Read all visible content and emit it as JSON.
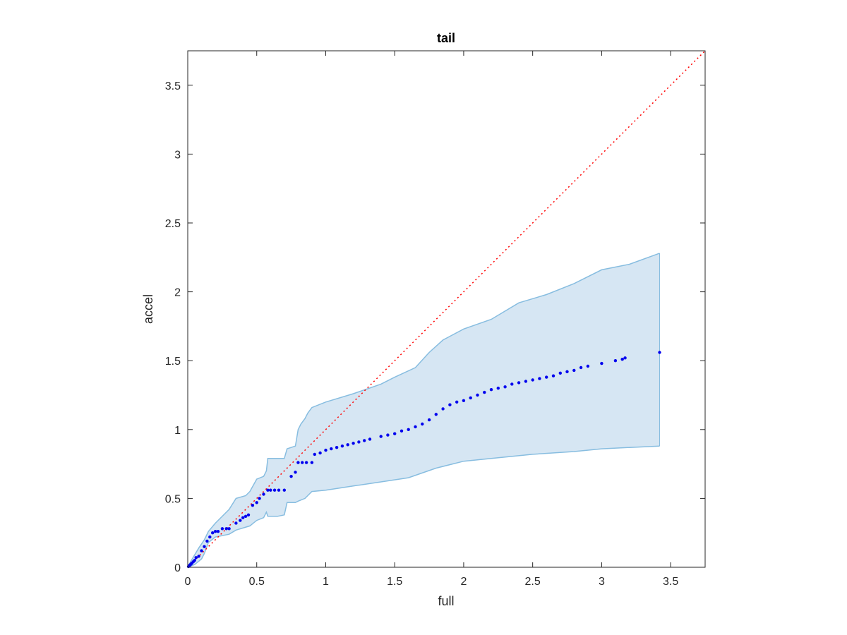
{
  "chart_data": {
    "type": "scatter",
    "title": "tail",
    "xlabel": "full",
    "ylabel": "accel",
    "xlim": [
      0,
      3.75
    ],
    "ylim": [
      0,
      3.75
    ],
    "xticks": [
      0,
      0.5,
      1,
      1.5,
      2,
      2.5,
      3,
      3.5
    ],
    "yticks": [
      0,
      0.5,
      1,
      1.5,
      2,
      2.5,
      3,
      3.5
    ],
    "xtick_labels": [
      "0",
      "0.5",
      "1",
      "1.5",
      "2",
      "2.5",
      "3",
      "3.5"
    ],
    "ytick_labels": [
      "0",
      "0.5",
      "1",
      "1.5",
      "2",
      "2.5",
      "3",
      "3.5"
    ],
    "grid": false,
    "colors": {
      "points": "#0000ee",
      "reference_line": "#ff0000",
      "band_fill": "#d6e6f3",
      "band_edge": "#87bde0",
      "axes": "#262626"
    },
    "reference_line": {
      "style": "dotted",
      "x": [
        0,
        3.75
      ],
      "y": [
        0,
        3.75
      ]
    },
    "band": {
      "upper": [
        [
          0,
          0
        ],
        [
          0.02,
          0.04
        ],
        [
          0.05,
          0.09
        ],
        [
          0.08,
          0.14
        ],
        [
          0.12,
          0.2
        ],
        [
          0.15,
          0.26
        ],
        [
          0.2,
          0.32
        ],
        [
          0.3,
          0.42
        ],
        [
          0.35,
          0.5
        ],
        [
          0.42,
          0.52
        ],
        [
          0.45,
          0.55
        ],
        [
          0.5,
          0.64
        ],
        [
          0.55,
          0.66
        ],
        [
          0.57,
          0.7
        ],
        [
          0.58,
          0.79
        ],
        [
          0.7,
          0.79
        ],
        [
          0.72,
          0.86
        ],
        [
          0.78,
          0.88
        ],
        [
          0.8,
          1.0
        ],
        [
          0.82,
          1.04
        ],
        [
          0.85,
          1.08
        ],
        [
          0.87,
          1.12
        ],
        [
          0.9,
          1.16
        ],
        [
          1.0,
          1.2
        ],
        [
          1.2,
          1.26
        ],
        [
          1.4,
          1.33
        ],
        [
          1.5,
          1.38
        ],
        [
          1.65,
          1.45
        ],
        [
          1.75,
          1.56
        ],
        [
          1.85,
          1.65
        ],
        [
          2.0,
          1.73
        ],
        [
          2.2,
          1.8
        ],
        [
          2.4,
          1.92
        ],
        [
          2.6,
          1.98
        ],
        [
          2.8,
          2.06
        ],
        [
          3.0,
          2.16
        ],
        [
          3.2,
          2.2
        ],
        [
          3.42,
          2.28
        ]
      ],
      "lower": [
        [
          0,
          0
        ],
        [
          0.05,
          0.02
        ],
        [
          0.1,
          0.06
        ],
        [
          0.12,
          0.1
        ],
        [
          0.15,
          0.18
        ],
        [
          0.2,
          0.22
        ],
        [
          0.3,
          0.24
        ],
        [
          0.35,
          0.27
        ],
        [
          0.45,
          0.3
        ],
        [
          0.5,
          0.34
        ],
        [
          0.55,
          0.36
        ],
        [
          0.57,
          0.4
        ],
        [
          0.58,
          0.37
        ],
        [
          0.65,
          0.37
        ],
        [
          0.7,
          0.38
        ],
        [
          0.72,
          0.47
        ],
        [
          0.78,
          0.47
        ],
        [
          0.8,
          0.48
        ],
        [
          0.85,
          0.5
        ],
        [
          0.88,
          0.53
        ],
        [
          0.9,
          0.55
        ],
        [
          1.0,
          0.56
        ],
        [
          1.2,
          0.59
        ],
        [
          1.4,
          0.62
        ],
        [
          1.6,
          0.65
        ],
        [
          1.8,
          0.72
        ],
        [
          2.0,
          0.77
        ],
        [
          2.2,
          0.79
        ],
        [
          2.5,
          0.82
        ],
        [
          2.8,
          0.84
        ],
        [
          3.0,
          0.86
        ],
        [
          3.2,
          0.87
        ],
        [
          3.42,
          0.88
        ]
      ]
    },
    "points": [
      [
        0.005,
        0.005
      ],
      [
        0.01,
        0.01
      ],
      [
        0.015,
        0.015
      ],
      [
        0.02,
        0.02
      ],
      [
        0.025,
        0.025
      ],
      [
        0.03,
        0.03
      ],
      [
        0.04,
        0.04
      ],
      [
        0.05,
        0.05
      ],
      [
        0.06,
        0.07
      ],
      [
        0.08,
        0.08
      ],
      [
        0.1,
        0.12
      ],
      [
        0.12,
        0.15
      ],
      [
        0.14,
        0.19
      ],
      [
        0.16,
        0.22
      ],
      [
        0.18,
        0.25
      ],
      [
        0.2,
        0.26
      ],
      [
        0.22,
        0.26
      ],
      [
        0.25,
        0.28
      ],
      [
        0.28,
        0.28
      ],
      [
        0.3,
        0.28
      ],
      [
        0.35,
        0.32
      ],
      [
        0.38,
        0.34
      ],
      [
        0.4,
        0.36
      ],
      [
        0.42,
        0.37
      ],
      [
        0.44,
        0.38
      ],
      [
        0.47,
        0.45
      ],
      [
        0.5,
        0.47
      ],
      [
        0.52,
        0.5
      ],
      [
        0.55,
        0.53
      ],
      [
        0.58,
        0.56
      ],
      [
        0.6,
        0.56
      ],
      [
        0.63,
        0.56
      ],
      [
        0.66,
        0.56
      ],
      [
        0.7,
        0.56
      ],
      [
        0.75,
        0.66
      ],
      [
        0.78,
        0.69
      ],
      [
        0.8,
        0.76
      ],
      [
        0.83,
        0.76
      ],
      [
        0.86,
        0.76
      ],
      [
        0.9,
        0.76
      ],
      [
        0.92,
        0.82
      ],
      [
        0.96,
        0.83
      ],
      [
        1.0,
        0.85
      ],
      [
        1.04,
        0.86
      ],
      [
        1.08,
        0.87
      ],
      [
        1.12,
        0.88
      ],
      [
        1.16,
        0.89
      ],
      [
        1.2,
        0.9
      ],
      [
        1.24,
        0.91
      ],
      [
        1.28,
        0.92
      ],
      [
        1.32,
        0.93
      ],
      [
        1.4,
        0.95
      ],
      [
        1.45,
        0.96
      ],
      [
        1.5,
        0.97
      ],
      [
        1.55,
        0.99
      ],
      [
        1.6,
        1.0
      ],
      [
        1.65,
        1.02
      ],
      [
        1.7,
        1.04
      ],
      [
        1.75,
        1.07
      ],
      [
        1.8,
        1.11
      ],
      [
        1.85,
        1.15
      ],
      [
        1.9,
        1.18
      ],
      [
        1.95,
        1.2
      ],
      [
        2.0,
        1.21
      ],
      [
        2.05,
        1.23
      ],
      [
        2.1,
        1.25
      ],
      [
        2.15,
        1.27
      ],
      [
        2.2,
        1.29
      ],
      [
        2.25,
        1.3
      ],
      [
        2.3,
        1.31
      ],
      [
        2.35,
        1.33
      ],
      [
        2.4,
        1.34
      ],
      [
        2.45,
        1.35
      ],
      [
        2.5,
        1.36
      ],
      [
        2.55,
        1.37
      ],
      [
        2.6,
        1.38
      ],
      [
        2.65,
        1.39
      ],
      [
        2.7,
        1.41
      ],
      [
        2.75,
        1.42
      ],
      [
        2.8,
        1.43
      ],
      [
        2.85,
        1.45
      ],
      [
        2.9,
        1.46
      ],
      [
        3.0,
        1.48
      ],
      [
        3.1,
        1.5
      ],
      [
        3.15,
        1.51
      ],
      [
        3.17,
        1.52
      ],
      [
        3.42,
        1.56
      ]
    ]
  }
}
